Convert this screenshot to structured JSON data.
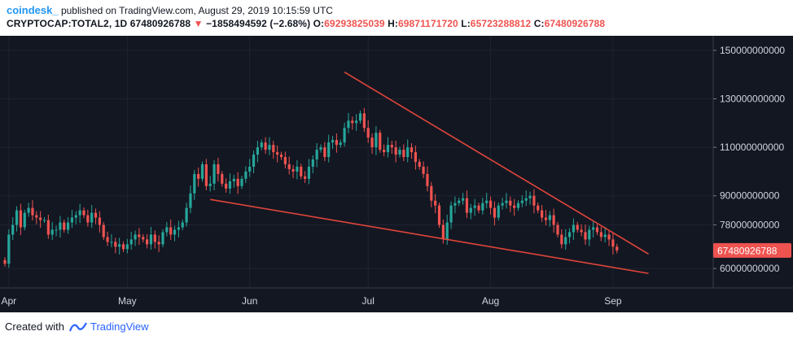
{
  "header": {
    "author": "coindesk_",
    "published": "published on TradingView.com, August 29, 2019 10:15:59 UTC",
    "symbol": "CRYPTOCAP:TOTAL2, 1D",
    "last": "67480926788",
    "change": "−1858494592 (−2.68%)",
    "o_label": "O:",
    "o_value": "69293825039",
    "h_label": "H:",
    "h_value": "69871171720",
    "l_label": "L:",
    "l_value": "65723288812",
    "c_label": "C:",
    "c_value": "67480926788"
  },
  "footer": {
    "created_with": "Created with",
    "brand": "TradingView"
  },
  "colors": {
    "up": "#26a69a",
    "down": "#ef5350",
    "trendline": "#e0453a",
    "price_badge": "#ef5350",
    "background": "#131722"
  },
  "chart_data": {
    "type": "candlestick",
    "ylim": [
      52000000000,
      156000000000
    ],
    "y_ticks": [
      {
        "value": 150000000000,
        "label": "150000000000"
      },
      {
        "value": 130000000000,
        "label": "130000000000"
      },
      {
        "value": 110000000000,
        "label": "110000000000"
      },
      {
        "value": 90000000000,
        "label": "90000000000"
      },
      {
        "value": 78000000000,
        "label": "78000000000"
      },
      {
        "value": 60000000000,
        "label": "60000000000"
      }
    ],
    "x_ticks": [
      {
        "day": 1,
        "label": "Apr"
      },
      {
        "day": 31,
        "label": "May"
      },
      {
        "day": 62,
        "label": "Jun"
      },
      {
        "day": 92,
        "label": "Jul"
      },
      {
        "day": 123,
        "label": "Aug"
      },
      {
        "day": 154,
        "label": "Sep"
      }
    ],
    "last_price": {
      "value": 67480926788,
      "label": "67480926788"
    },
    "trendlines": [
      {
        "from": [
          86,
          141000000000
        ],
        "to": [
          163,
          66000000000
        ]
      },
      {
        "from": [
          52,
          88500000000
        ],
        "to": [
          163,
          58000000000
        ]
      }
    ],
    "closes": [
      62,
      74,
      78,
      84,
      77,
      83,
      85,
      82,
      81,
      80,
      80,
      74,
      76,
      76,
      79,
      76,
      79,
      81,
      82,
      84,
      82,
      79,
      83,
      81,
      78,
      73,
      71,
      71,
      69,
      70,
      68,
      70,
      72,
      74,
      73,
      72,
      70,
      74,
      71,
      70,
      75,
      77,
      74,
      76,
      77,
      79,
      85,
      91,
      99,
      97,
      103,
      94,
      95,
      103,
      99,
      95,
      93,
      96,
      97,
      94,
      97,
      100,
      102,
      107,
      110,
      112,
      109,
      111,
      108,
      107,
      106,
      103,
      101,
      100,
      102,
      98,
      97,
      102,
      105,
      109,
      110,
      106,
      112,
      113,
      111,
      112,
      118,
      121,
      120,
      121,
      124,
      118,
      114,
      110,
      116,
      109,
      108,
      111,
      110,
      107,
      109,
      106,
      110,
      108,
      104,
      102,
      99,
      94,
      88,
      86,
      78,
      72,
      79,
      86,
      87,
      88,
      89,
      83,
      85,
      86,
      84,
      87,
      88,
      85,
      81,
      86,
      87,
      88,
      86,
      85,
      87,
      88,
      89,
      90,
      86,
      84,
      81,
      80,
      82,
      78,
      74,
      70,
      73,
      75,
      78,
      76,
      75,
      72,
      76,
      77,
      75,
      73,
      74,
      72,
      69,
      67.48
    ]
  }
}
